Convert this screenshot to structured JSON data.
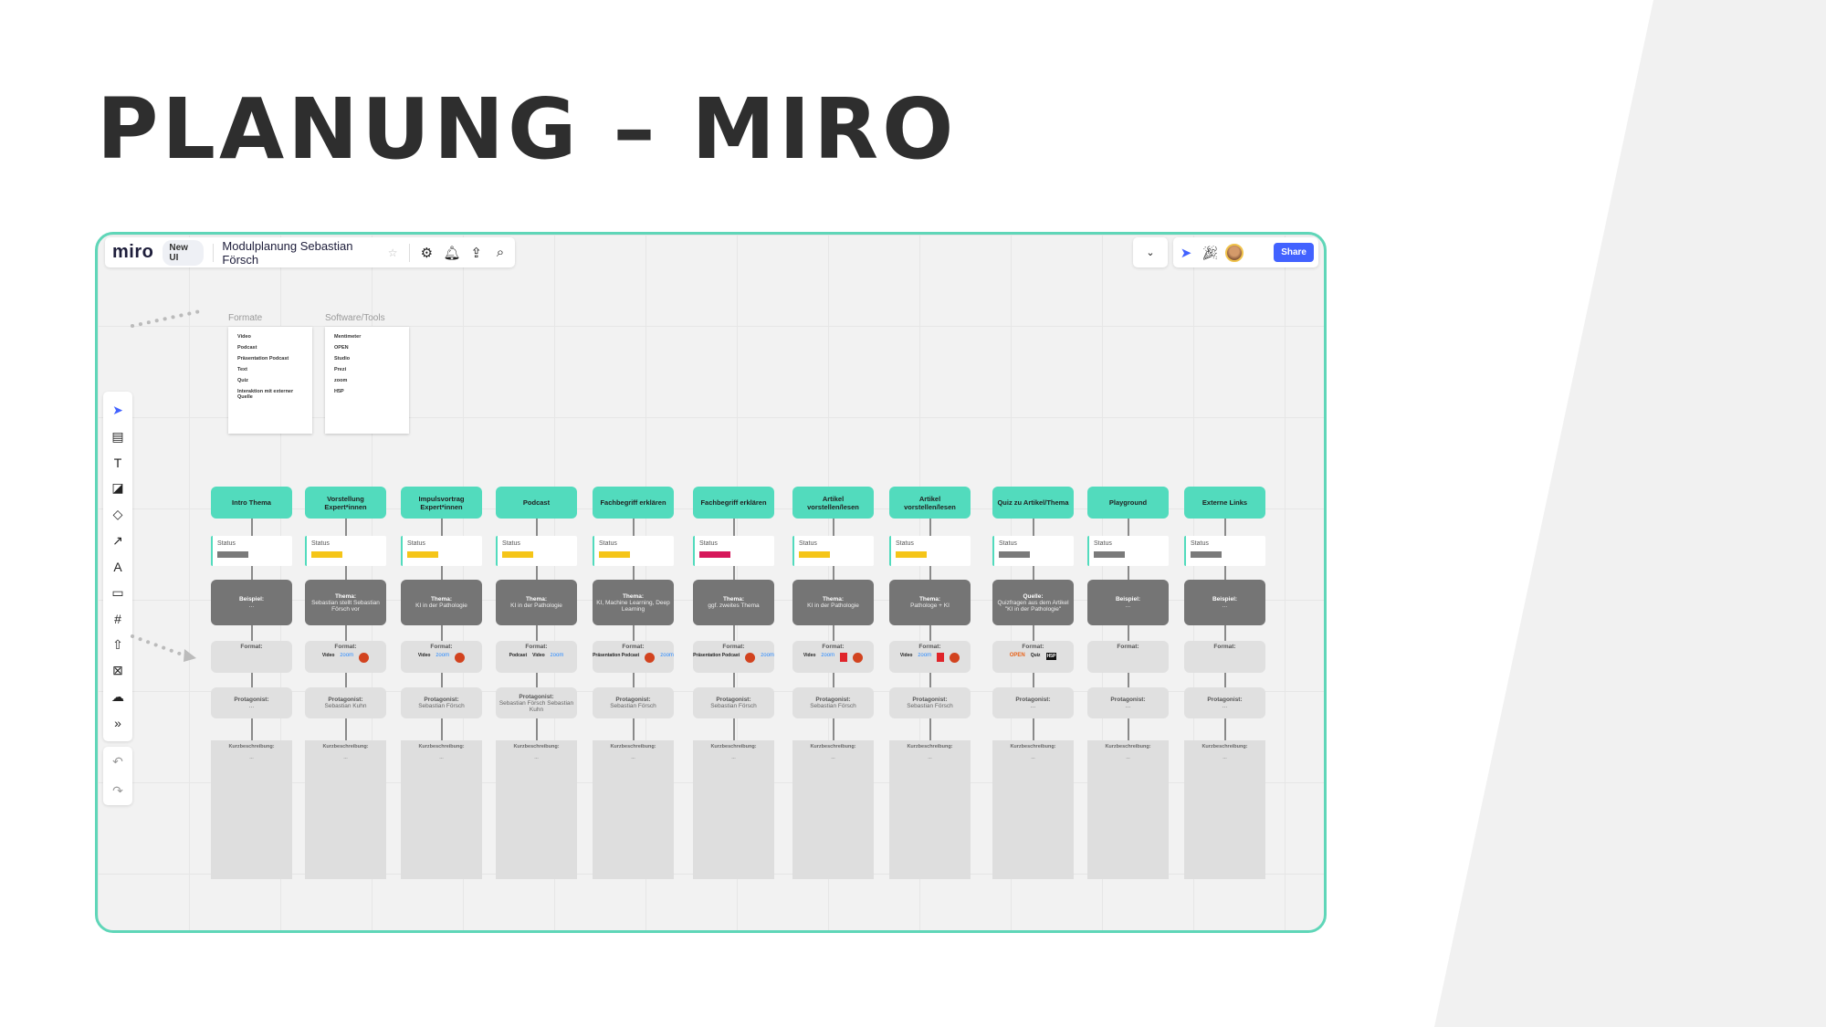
{
  "slide_title": "PLANUNG – MIRO",
  "toolbar": {
    "logo": "miro",
    "badge": "New UI",
    "board_name": "Modulplanung Sebastian Försch",
    "share_label": "Share"
  },
  "formate": {
    "label": "Formate",
    "items": [
      "Video",
      "Podcast",
      "Präsentation Podcast",
      "Text",
      "Quiz",
      "Interaktion mit externer Quelle"
    ]
  },
  "software": {
    "label": "Software/Tools",
    "items": [
      "Mentimeter",
      "OPEN",
      "Studio",
      "Prezi",
      "zoom",
      "H5P"
    ]
  },
  "status_colors": {
    "grey": "#7a7a7a",
    "yellow": "#f5c518",
    "red": "#d6175a"
  },
  "row_labels": {
    "status": "Status",
    "format": "Format:",
    "protagonist": "Protagonist:",
    "kurz": "Kurzbeschreibung:",
    "kurz_value": "..."
  },
  "columns": [
    {
      "title": "Intro Thema",
      "status": "grey",
      "thema_label": "Beispiel:",
      "thema": "...",
      "formats": [],
      "protagonist": "..."
    },
    {
      "title": "Vorstellung Expert*innen",
      "status": "yellow",
      "thema_label": "Thema:",
      "thema": "Sebastian stellt Sebastian Försch vor",
      "formats": [
        "video",
        "zoom",
        "ppt"
      ],
      "protagonist": "Sebastian Kuhn"
    },
    {
      "title": "Impulsvortrag Expert*innen",
      "status": "yellow",
      "thema_label": "Thema:",
      "thema": "KI in der Pathologie",
      "formats": [
        "video",
        "zoom",
        "ppt"
      ],
      "protagonist": "Sebastian Försch"
    },
    {
      "title": "Podcast",
      "status": "yellow",
      "thema_label": "Thema:",
      "thema": "KI in der Pathologie",
      "formats": [
        "podcast",
        "video",
        "zoom"
      ],
      "protagonist": "Sebastian Försch Sebastian Kuhn"
    },
    {
      "title": "Fachbegriff erklären",
      "status": "yellow",
      "thema_label": "Thema:",
      "thema": "KI, Machine Learning, Deep Learning",
      "formats": [
        "praesentation",
        "ppt",
        "zoom"
      ],
      "protagonist": "Sebastian Försch"
    },
    {
      "title": "Fachbegriff erklären",
      "status": "red",
      "thema_label": "Thema:",
      "thema": "ggf. zweites Thema",
      "formats": [
        "praesentation",
        "ppt",
        "zoom"
      ],
      "protagonist": "Sebastian Försch"
    },
    {
      "title": "Artikel vorstellen/lesen",
      "status": "yellow",
      "thema_label": "Thema:",
      "thema": "KI in der Pathologie",
      "formats": [
        "video",
        "zoom",
        "pdf",
        "ppt"
      ],
      "protagonist": "Sebastian Försch"
    },
    {
      "title": "Artikel vorstellen/lesen",
      "status": "yellow",
      "thema_label": "Thema:",
      "thema": "Pathologe + KI",
      "formats": [
        "video",
        "zoom",
        "pdf",
        "ppt"
      ],
      "protagonist": "Sebastian Försch"
    },
    {
      "title": "Quiz zu Artikel/Thema",
      "status": "grey",
      "thema_label": "Quelle:",
      "thema": "Quizfragen aus dem Artikel \"KI in der Pathologie\"",
      "formats": [
        "open",
        "quiz",
        "h5p"
      ],
      "protagonist": "..."
    },
    {
      "title": "Playground",
      "status": "grey",
      "thema_label": "Beispiel:",
      "thema": "...",
      "formats": [],
      "protagonist": "..."
    },
    {
      "title": "Externe Links",
      "status": "grey",
      "thema_label": "Beispiel:",
      "thema": "...",
      "formats": [],
      "protagonist": "..."
    }
  ],
  "format_labels": {
    "video": "Video",
    "podcast": "Podcast",
    "praesentation": "Präsentation Podcast",
    "quiz": "Quiz",
    "zoom": "zoom",
    "open": "OPEN",
    "h5p": "H5P"
  }
}
